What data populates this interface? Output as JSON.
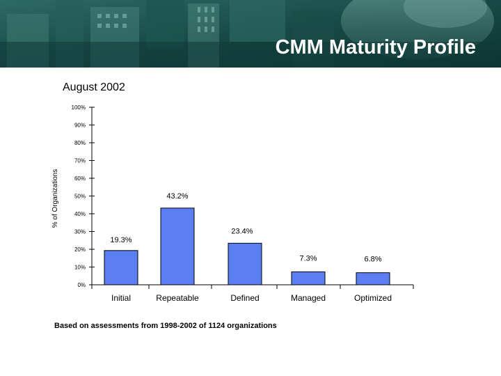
{
  "slide": {
    "title": "CMM Maturity Profile",
    "subtitle": "August 2002",
    "footnote": "Based on assessments from 1998-2002 of 1124 organizations"
  },
  "colors": {
    "banner": "#0f3a38",
    "bar_fill": "#5b7ff0",
    "bar_stroke": "#000000"
  },
  "chart_data": {
    "type": "bar",
    "title": "",
    "xlabel": "",
    "ylabel": "% of Organizations",
    "ylim": [
      0,
      100
    ],
    "yticks": [
      0,
      10,
      20,
      30,
      40,
      50,
      60,
      70,
      80,
      90,
      100
    ],
    "ytick_labels": [
      "0%",
      "10%",
      "20%",
      "30%",
      "40%",
      "50%",
      "60%",
      "70%",
      "80%",
      "90%",
      "100%"
    ],
    "categories": [
      "Initial",
      "Repeatable",
      "Defined",
      "Managed",
      "Optimized"
    ],
    "values": [
      19.3,
      43.2,
      23.4,
      7.3,
      6.8
    ],
    "data_labels": [
      "19.3%",
      "43.2%",
      "23.4%",
      "7.3%",
      "6.8%"
    ],
    "grid": false
  }
}
